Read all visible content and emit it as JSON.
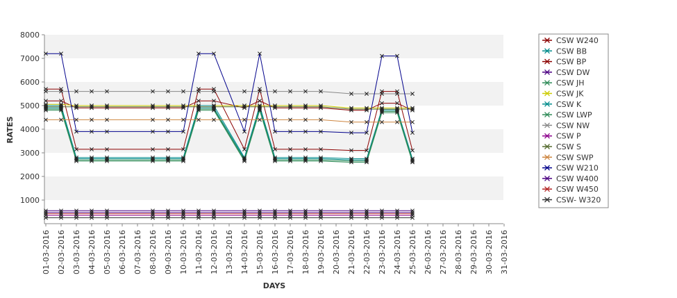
{
  "chart_data": {
    "type": "line",
    "xlabel": "DAYS",
    "ylabel": "RATES",
    "ylim": [
      0,
      8000
    ],
    "yticks": [
      1000,
      2000,
      3000,
      4000,
      5000,
      6000,
      7000,
      8000
    ],
    "grid": "alternating horizontal bands",
    "legend_position": "right",
    "categories": [
      "01-03-2016",
      "02-03-2016",
      "03-03-2016",
      "04-03-2016",
      "05-03-2016",
      "06-03-2016",
      "07-03-2016",
      "08-03-2016",
      "09-03-2016",
      "10-03-2016",
      "11-03-2016",
      "12-03-2016",
      "13-03-2016",
      "14-03-2016",
      "15-03-2016",
      "16-03-2016",
      "17-03-2016",
      "18-03-2016",
      "19-03-2016",
      "20-03-2016",
      "21-03-2016",
      "22-03-2016",
      "23-03-2016",
      "24-03-2016",
      "25-03-2016",
      "26-03-2016",
      "27-03-2016",
      "28-03-2016",
      "29-03-2016",
      "30-03-2016",
      "31-03-2016"
    ],
    "series": [
      {
        "name": "CSW  W240",
        "color": "#8b0000",
        "values": [
          5700,
          5700,
          3150,
          3150,
          3150,
          null,
          null,
          3150,
          3150,
          3150,
          5700,
          5700,
          null,
          3150,
          5700,
          3150,
          3150,
          3150,
          3150,
          null,
          3100,
          3100,
          5600,
          5600,
          3100,
          null,
          null,
          null,
          null,
          null,
          null
        ]
      },
      {
        "name": "CSW BB",
        "color": "#008b8b",
        "values": [
          4900,
          4900,
          2750,
          2750,
          2750,
          null,
          null,
          2750,
          2750,
          2750,
          4900,
          4900,
          null,
          2750,
          4900,
          2750,
          2750,
          2750,
          2750,
          null,
          2700,
          2700,
          4800,
          4800,
          2700,
          null,
          null,
          null,
          null,
          null,
          null
        ]
      },
      {
        "name": "CSW BP",
        "color": "#8b0000",
        "values": [
          5200,
          5200,
          4900,
          4900,
          4900,
          null,
          null,
          4900,
          4900,
          4900,
          5200,
          5200,
          null,
          4900,
          5200,
          4900,
          4900,
          4900,
          4900,
          null,
          4800,
          4800,
          5100,
          5100,
          4800,
          null,
          null,
          null,
          null,
          null,
          null
        ]
      },
      {
        "name": "CSW DW",
        "color": "#4b0082",
        "values": [
          480,
          480,
          480,
          480,
          480,
          null,
          null,
          480,
          480,
          480,
          480,
          480,
          null,
          480,
          480,
          480,
          480,
          480,
          480,
          null,
          480,
          480,
          480,
          480,
          480,
          null,
          null,
          null,
          null,
          null,
          null
        ]
      },
      {
        "name": "CSW JH",
        "color": "#2e8b57",
        "values": [
          4800,
          4800,
          2650,
          2650,
          2650,
          null,
          null,
          2650,
          2650,
          2650,
          4800,
          4800,
          null,
          2650,
          4800,
          2650,
          2650,
          2650,
          2650,
          null,
          2600,
          2600,
          4700,
          4700,
          2600,
          null,
          null,
          null,
          null,
          null,
          null
        ]
      },
      {
        "name": "CSW JK",
        "color": "#cccc00",
        "values": [
          5050,
          5050,
          5000,
          5000,
          5000,
          null,
          null,
          5000,
          5000,
          5000,
          5000,
          5000,
          null,
          5000,
          5000,
          5000,
          5000,
          5000,
          5000,
          null,
          4900,
          4900,
          4900,
          4900,
          4900,
          null,
          null,
          null,
          null,
          null,
          null
        ]
      },
      {
        "name": "CSW K",
        "color": "#008b8b",
        "values": [
          5000,
          5000,
          2800,
          2800,
          2800,
          null,
          null,
          2800,
          2800,
          2800,
          5000,
          5000,
          null,
          2800,
          5000,
          2800,
          2800,
          2800,
          2800,
          null,
          2750,
          2750,
          4850,
          4850,
          2750,
          null,
          null,
          null,
          null,
          null,
          null
        ]
      },
      {
        "name": "CSW LWP",
        "color": "#2e8b57",
        "values": [
          4850,
          4850,
          2700,
          2700,
          2700,
          null,
          null,
          2700,
          2700,
          2700,
          4850,
          4850,
          null,
          2700,
          4850,
          2700,
          2700,
          2700,
          2700,
          null,
          2650,
          2650,
          4750,
          4750,
          2650,
          null,
          null,
          null,
          null,
          null,
          null
        ]
      },
      {
        "name": "CSW NW",
        "color": "#888888",
        "values": [
          5600,
          5600,
          5600,
          5600,
          5600,
          null,
          null,
          5600,
          5600,
          5600,
          5600,
          5600,
          null,
          5600,
          5600,
          5600,
          5600,
          5600,
          5600,
          null,
          5500,
          5500,
          5500,
          5500,
          5500,
          null,
          null,
          null,
          null,
          null,
          null
        ]
      },
      {
        "name": "CSW P",
        "color": "#8b008b",
        "values": [
          350,
          350,
          350,
          350,
          350,
          null,
          null,
          350,
          350,
          350,
          350,
          350,
          null,
          350,
          350,
          350,
          350,
          350,
          350,
          null,
          350,
          350,
          350,
          350,
          350,
          null,
          null,
          null,
          null,
          null,
          null
        ]
      },
      {
        "name": "CSW S",
        "color": "#556b2f",
        "values": [
          4950,
          4950,
          4950,
          4950,
          4950,
          null,
          null,
          4950,
          4950,
          4950,
          4950,
          4950,
          null,
          4950,
          4950,
          4950,
          4950,
          4950,
          4950,
          null,
          4850,
          4850,
          4850,
          4850,
          4850,
          null,
          null,
          null,
          null,
          null,
          null
        ]
      },
      {
        "name": "CSW SWP",
        "color": "#cd853f",
        "values": [
          4400,
          4400,
          4400,
          4400,
          4400,
          null,
          null,
          4400,
          4400,
          4400,
          4400,
          4400,
          null,
          4400,
          4400,
          4400,
          4400,
          4400,
          4400,
          null,
          4300,
          4300,
          4300,
          4300,
          4300,
          null,
          null,
          null,
          null,
          null,
          null
        ]
      },
      {
        "name": "CSW W210",
        "color": "#00008b",
        "values": [
          7200,
          7200,
          3900,
          3900,
          3900,
          null,
          null,
          3900,
          3900,
          3900,
          7200,
          7200,
          null,
          3900,
          7200,
          3900,
          3900,
          3900,
          3900,
          null,
          3850,
          3850,
          7100,
          7100,
          3850,
          null,
          null,
          null,
          null,
          null,
          null
        ]
      },
      {
        "name": "CSW W400",
        "color": "#4b0082",
        "values": [
          550,
          550,
          550,
          550,
          550,
          null,
          null,
          550,
          550,
          550,
          550,
          550,
          null,
          550,
          550,
          550,
          550,
          550,
          550,
          null,
          550,
          550,
          550,
          550,
          550,
          null,
          null,
          null,
          null,
          null,
          null
        ]
      },
      {
        "name": "CSW W450",
        "color": "#b22222",
        "values": [
          420,
          420,
          420,
          420,
          420,
          null,
          null,
          420,
          420,
          420,
          420,
          420,
          null,
          420,
          420,
          420,
          420,
          420,
          420,
          null,
          420,
          420,
          420,
          420,
          420,
          null,
          null,
          null,
          null,
          null,
          null
        ]
      },
      {
        "name": "CSW- W320",
        "color": "#333333",
        "values": [
          250,
          250,
          250,
          250,
          250,
          null,
          null,
          250,
          250,
          250,
          250,
          250,
          null,
          250,
          250,
          250,
          250,
          250,
          250,
          null,
          250,
          250,
          250,
          250,
          250,
          null,
          null,
          null,
          null,
          null,
          null
        ]
      }
    ]
  }
}
